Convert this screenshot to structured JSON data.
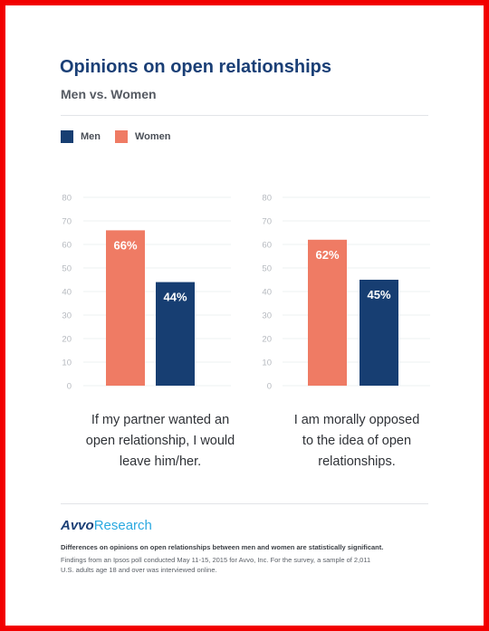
{
  "header": {
    "title": "Opinions on open relationships",
    "subtitle": "Men vs. Women"
  },
  "legend": {
    "men_label": "Men",
    "women_label": "Women"
  },
  "colors": {
    "men": "#173e72",
    "women": "#ef7b64",
    "axis_text": "#b5b9bf",
    "grid": "#eef0f2"
  },
  "chart_data": [
    {
      "type": "bar",
      "title": "",
      "categories": [
        "If my partner wanted an open relationship, I would leave him/her."
      ],
      "series": [
        {
          "name": "Women",
          "values": [
            66
          ],
          "labels": [
            "66%"
          ]
        },
        {
          "name": "Men",
          "values": [
            44
          ],
          "labels": [
            "44%"
          ]
        }
      ],
      "ylim": [
        0,
        80
      ],
      "yticks": [
        0,
        10,
        20,
        30,
        40,
        50,
        60,
        70,
        80
      ],
      "xlabel": "",
      "ylabel": "",
      "caption_lines": [
        "If my partner wanted an",
        "open relationship, I would",
        "leave him/her."
      ]
    },
    {
      "type": "bar",
      "title": "",
      "categories": [
        "I am morally opposed to the idea of open relationships."
      ],
      "series": [
        {
          "name": "Women",
          "values": [
            62
          ],
          "labels": [
            "62%"
          ]
        },
        {
          "name": "Men",
          "values": [
            45
          ],
          "labels": [
            "45%"
          ]
        }
      ],
      "ylim": [
        0,
        80
      ],
      "yticks": [
        0,
        10,
        20,
        30,
        40,
        50,
        60,
        70,
        80
      ],
      "xlabel": "",
      "ylabel": "",
      "caption_lines": [
        "I am morally opposed",
        "to the idea of open",
        "relationships."
      ]
    }
  ],
  "footer": {
    "brand_part1": "Avvo",
    "brand_part2": "Research",
    "note_bold": "Differences on opinions on open relationships between men and women are statistically significant.",
    "note_line1": "Findings from an Ipsos poll conducted May 11-15, 2015 for Avvo, Inc. For the survey, a sample of 2,011",
    "note_line2": "U.S. adults age 18 and over was interviewed online."
  }
}
